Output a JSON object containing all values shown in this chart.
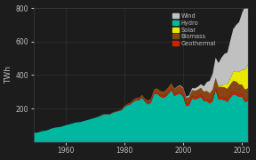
{
  "title": "",
  "ylabel": "TWh",
  "background_color": "#1c1c1c",
  "plot_bg_color": "#1c1c1c",
  "grid_color": "#3a3a3a",
  "text_color": "#c0c0c0",
  "years": [
    1949,
    1950,
    1951,
    1952,
    1953,
    1954,
    1955,
    1956,
    1957,
    1958,
    1959,
    1960,
    1961,
    1962,
    1963,
    1964,
    1965,
    1966,
    1967,
    1968,
    1969,
    1970,
    1971,
    1972,
    1973,
    1974,
    1975,
    1976,
    1977,
    1978,
    1979,
    1980,
    1981,
    1982,
    1983,
    1984,
    1985,
    1986,
    1987,
    1988,
    1989,
    1990,
    1991,
    1992,
    1993,
    1994,
    1995,
    1996,
    1997,
    1998,
    1999,
    2000,
    2001,
    2002,
    2003,
    2004,
    2005,
    2006,
    2007,
    2008,
    2009,
    2010,
    2011,
    2012,
    2013,
    2014,
    2015,
    2016,
    2017,
    2018,
    2019,
    2020,
    2021,
    2022
  ],
  "hydro": [
    58,
    55,
    60,
    65,
    68,
    72,
    80,
    85,
    88,
    90,
    95,
    100,
    105,
    110,
    115,
    118,
    120,
    125,
    130,
    135,
    140,
    145,
    150,
    158,
    165,
    165,
    165,
    175,
    180,
    185,
    190,
    210,
    220,
    225,
    240,
    250,
    250,
    265,
    240,
    225,
    235,
    285,
    290,
    275,
    265,
    270,
    290,
    310,
    275,
    285,
    290,
    270,
    215,
    220,
    260,
    255,
    260,
    270,
    245,
    245,
    230,
    245,
    310,
    255,
    255,
    250,
    240,
    265,
    285,
    280,
    270,
    270,
    240,
    245
  ],
  "geothermal": [
    0,
    0,
    0,
    0,
    0,
    0,
    0,
    0,
    0,
    0,
    0,
    0,
    0,
    0,
    0,
    0,
    0,
    0,
    0,
    0,
    0,
    1,
    1,
    1,
    1,
    1,
    1,
    1,
    2,
    2,
    2,
    3,
    3,
    4,
    5,
    5,
    6,
    7,
    8,
    9,
    9,
    10,
    10,
    10,
    10,
    11,
    11,
    11,
    11,
    11,
    12,
    13,
    13,
    13,
    14,
    14,
    15,
    15,
    15,
    15,
    15,
    15,
    16,
    16,
    16,
    17,
    17,
    17,
    17,
    18,
    17,
    17,
    17,
    16
  ],
  "biomass": [
    0,
    0,
    0,
    0,
    0,
    0,
    0,
    0,
    0,
    0,
    0,
    0,
    0,
    0,
    0,
    0,
    0,
    0,
    0,
    0,
    0,
    1,
    1,
    2,
    2,
    2,
    2,
    2,
    2,
    3,
    3,
    5,
    6,
    7,
    8,
    9,
    10,
    11,
    12,
    14,
    16,
    19,
    22,
    24,
    26,
    28,
    30,
    31,
    31,
    33,
    34,
    36,
    36,
    36,
    36,
    37,
    38,
    39,
    41,
    45,
    46,
    52,
    55,
    57,
    59,
    60,
    61,
    62,
    64,
    63,
    58,
    55,
    57,
    60
  ],
  "solar": [
    0,
    0,
    0,
    0,
    0,
    0,
    0,
    0,
    0,
    0,
    0,
    0,
    0,
    0,
    0,
    0,
    0,
    0,
    0,
    0,
    0,
    0,
    0,
    0,
    0,
    0,
    0,
    0,
    0,
    0,
    0,
    0,
    0,
    0,
    0,
    0,
    0,
    0,
    0,
    0,
    0,
    0,
    0,
    0,
    0,
    0,
    0,
    0,
    0,
    0,
    0,
    0,
    0,
    0,
    0,
    0,
    0,
    0,
    0,
    1,
    1,
    2,
    3,
    4,
    9,
    18,
    26,
    36,
    53,
    63,
    72,
    91,
    116,
    143
  ],
  "wind": [
    0,
    0,
    0,
    0,
    0,
    0,
    0,
    0,
    0,
    0,
    0,
    0,
    0,
    0,
    0,
    0,
    0,
    0,
    0,
    0,
    0,
    0,
    0,
    0,
    0,
    0,
    0,
    0,
    0,
    0,
    0,
    0,
    0,
    0,
    0,
    0,
    0,
    0,
    0,
    0,
    0,
    0,
    0,
    0,
    0,
    0,
    0,
    0,
    2,
    3,
    4,
    5,
    7,
    10,
    12,
    15,
    18,
    22,
    32,
    52,
    74,
    94,
    120,
    140,
    165,
    182,
    190,
    226,
    256,
    275,
    300,
    337,
    380,
    435
  ],
  "colors": {
    "hydro": "#00b8a0",
    "geothermal": "#cc2200",
    "biomass": "#8b4513",
    "solar": "#e8e800",
    "wind": "#c0c0c0"
  },
  "legend_labels": [
    "Wind",
    "Hydro",
    "Solar",
    "Biomass",
    "Geothermal"
  ],
  "legend_colors": [
    "#c0c0c0",
    "#00b8a0",
    "#e8e800",
    "#8b4513",
    "#cc2200"
  ],
  "ylim": [
    0,
    800
  ],
  "yticks": [
    200,
    400,
    600,
    800
  ],
  "xticks": [
    1960,
    1980,
    2000,
    2020
  ],
  "xlim_start": 1949,
  "xlim_end": 2022
}
